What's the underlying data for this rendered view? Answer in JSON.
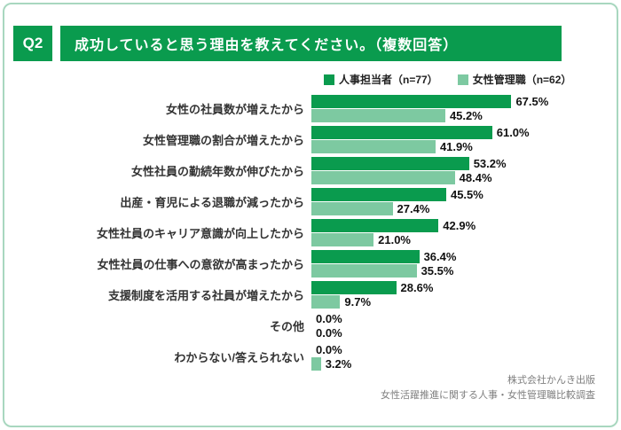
{
  "badge": "Q2",
  "title": "成功していると思う理由を教えてください。（複数回答）",
  "legend": [
    {
      "label": "人事担当者（n=77）"
    },
    {
      "label": "女性管理職（n=62）"
    }
  ],
  "chart_data": {
    "type": "bar",
    "orientation": "horizontal",
    "title": "成功していると思う理由を教えてください。（複数回答）",
    "categories": [
      "女性の社員数が増えたから",
      "女性管理職の割合が増えたから",
      "女性社員の勤続年数が伸びたから",
      "出産・育児による退職が減ったから",
      "女性社員のキャリア意識が向上したから",
      "女性社員の仕事への意欲が高まったから",
      "支援制度を活用する社員が増えたから",
      "その他",
      "わからない/答えられない"
    ],
    "series": [
      {
        "name": "人事担当者（n=77）",
        "color": "#0a9b4e",
        "values": [
          67.5,
          61.0,
          53.2,
          45.5,
          42.9,
          36.4,
          28.6,
          0.0,
          0.0
        ]
      },
      {
        "name": "女性管理職（n=62）",
        "color": "#7dc9a1",
        "values": [
          45.2,
          41.9,
          48.4,
          27.4,
          21.0,
          35.5,
          9.7,
          0.0,
          3.2
        ]
      }
    ],
    "value_suffix": "%",
    "xlim": [
      0,
      100
    ],
    "grid": false,
    "legend_position": "top"
  },
  "footer": {
    "line1": "株式会社かんき出版",
    "line2": "女性活躍推進に関する人事・女性管理職比較調査"
  },
  "colors": {
    "accent_dark_green": "#0a9b4e",
    "accent_light_green": "#7dc9a1",
    "card_border": "#a8d7bf"
  }
}
